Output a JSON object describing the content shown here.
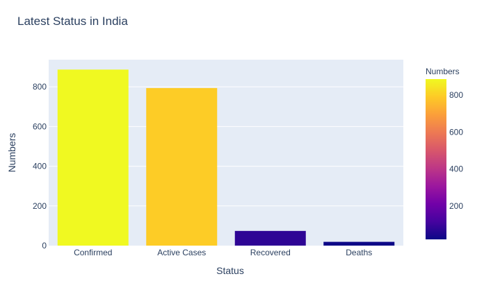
{
  "chart_data": {
    "type": "bar",
    "title": "Latest Status in India",
    "xlabel": "Status",
    "ylabel": "Numbers",
    "categories": [
      "Confirmed",
      "Active Cases",
      "Recovered",
      "Deaths"
    ],
    "values": [
      887,
      794,
      74,
      19
    ],
    "ylim": [
      0,
      937
    ],
    "yticks": [
      0,
      200,
      400,
      600,
      800
    ],
    "ytick_labels": [
      "0",
      "200",
      "400",
      "600",
      "800"
    ],
    "grid": true,
    "colorscale": "plasma",
    "colorbar": {
      "title": "Numbers",
      "range": [
        19,
        887
      ],
      "ticks": [
        200,
        400,
        600,
        800
      ],
      "tick_labels": [
        "200",
        "400",
        "600",
        "800"
      ]
    },
    "colors": {
      "plot_background": "#e5ecf6",
      "gridline": "#ffffff",
      "text": "#2a3f5f"
    }
  }
}
